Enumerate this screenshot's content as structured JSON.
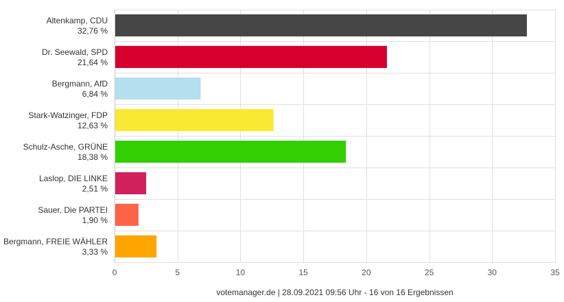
{
  "chart_data": {
    "type": "bar",
    "orientation": "horizontal",
    "categories": [
      {
        "name": "Altenkamp, CDU",
        "label": "32,76 %"
      },
      {
        "name": "Dr. Seewald, SPD",
        "label": "21,64 %"
      },
      {
        "name": "Bergmann, AfD",
        "label": "6,84 %"
      },
      {
        "name": "Stark-Watzinger, FDP",
        "label": "12,63 %"
      },
      {
        "name": "Schulz-Asche, GRÜNE",
        "label": "18,38 %"
      },
      {
        "name": "Laslop, DIE LINKE",
        "label": "2,51 %"
      },
      {
        "name": "Sauer, Die PARTEI",
        "label": "1,90 %"
      },
      {
        "name": "Bergmann, FREIE WÄHLER",
        "label": "3,33 %"
      }
    ],
    "values": [
      32.76,
      21.64,
      6.84,
      12.63,
      18.38,
      2.51,
      1.9,
      3.33
    ],
    "colors": [
      "#464646",
      "#d7002d",
      "#b3dfee",
      "#f9e933",
      "#32d000",
      "#d1215c",
      "#ff6347",
      "#ffa500"
    ],
    "xlim": [
      0,
      35
    ],
    "xticks": [
      "0",
      "5",
      "10",
      "15",
      "20",
      "25",
      "30",
      "35"
    ],
    "grid": true
  },
  "footer": "votemanager.de | 28.09.2021 09:56 Uhr - 16 von 16 Ergebnissen"
}
